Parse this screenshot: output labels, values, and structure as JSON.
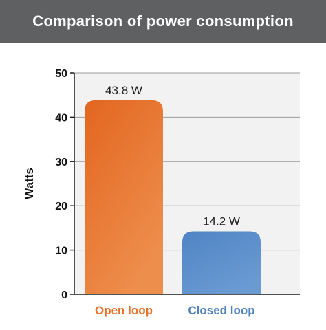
{
  "chart_data": {
    "type": "bar",
    "title": "Comparison of power consumption",
    "xlabel": "",
    "ylabel": "Watts",
    "ylim": [
      0,
      50
    ],
    "yticks": [
      0,
      10,
      20,
      30,
      40,
      50
    ],
    "grid": true,
    "legend": "none",
    "categories": [
      "Open loop",
      "Closed loop"
    ],
    "values": [
      43.8,
      14.2
    ],
    "data_labels": [
      "43.8 W",
      "14.2 W"
    ],
    "colors": {
      "open_loop": "#e8712b",
      "closed_loop": "#5b8ecb",
      "open_loop_label": "#e8712b",
      "closed_loop_label": "#4f80c0",
      "title_bar": "#5f6062",
      "plot_bg": "#f2f2f2"
    }
  }
}
